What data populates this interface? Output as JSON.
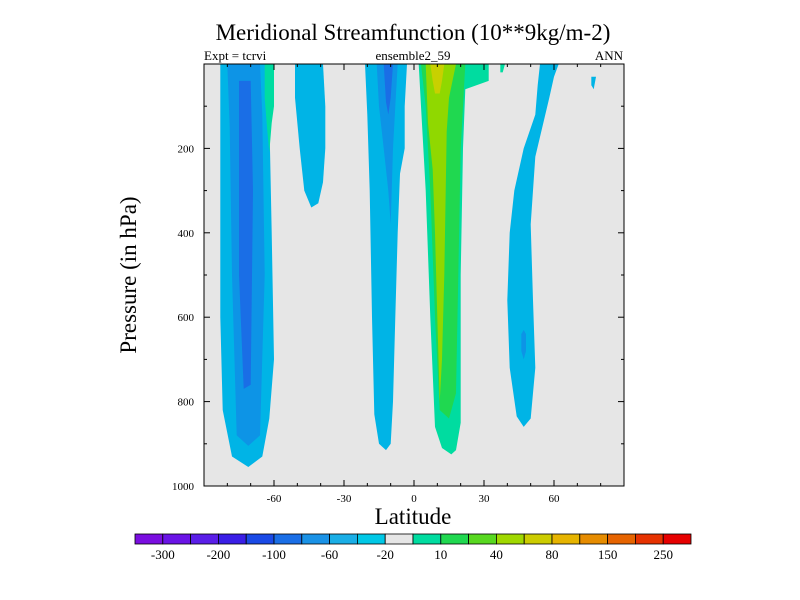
{
  "chart_data": {
    "type": "contour",
    "title": "Meridional Streamfunction (10**9kg/m-2)",
    "left_label": "Expt = tcrvi",
    "center_label": "ensemble2_59",
    "right_label": "ANN",
    "xlabel": "Latitude",
    "ylabel": "Pressure (in hPa)",
    "xlim": [
      -90,
      90
    ],
    "ylim": [
      1000,
      0
    ],
    "x_ticks": [
      -60,
      -30,
      0,
      30,
      60
    ],
    "y_ticks": [
      200,
      400,
      600,
      800,
      1000
    ],
    "background_color": "#e6e6e6",
    "colorbar": {
      "colors": [
        "#7a0ee0",
        "#6a14e6",
        "#5a1ee8",
        "#3a1ee6",
        "#1a4ae6",
        "#1a6ee6",
        "#1a92e6",
        "#1aaee6",
        "#00c8e6",
        "#e6e6e6",
        "#00dca0",
        "#20d850",
        "#58d820",
        "#a0d800",
        "#cccc00",
        "#e6b400",
        "#e68c00",
        "#e66400",
        "#e63200",
        "#e60000"
      ],
      "tick_labels": [
        "-300",
        "-200",
        "-100",
        "-60",
        "-20",
        "10",
        "40",
        "80",
        "150",
        "250"
      ]
    },
    "contours": [
      {
        "name": "sh-cell-outer",
        "value": -20,
        "color": "#00b4e6",
        "points": [
          [
            -83,
            0
          ],
          [
            -62,
            0
          ],
          [
            -62,
            120
          ],
          [
            -61,
            400
          ],
          [
            -60,
            700
          ],
          [
            -62,
            840
          ],
          [
            -65,
            930
          ],
          [
            -71,
            955
          ],
          [
            -78,
            930
          ],
          [
            -82,
            820
          ],
          [
            -83,
            600
          ],
          [
            -83,
            300
          ]
        ]
      },
      {
        "name": "sh-cell-inner",
        "value": -60,
        "color": "#0d94e6",
        "points": [
          [
            -80,
            0
          ],
          [
            -66,
            0
          ],
          [
            -65,
            120
          ],
          [
            -64,
            500
          ],
          [
            -66,
            880
          ],
          [
            -71,
            905
          ],
          [
            -76,
            880
          ],
          [
            -78,
            500
          ],
          [
            -79,
            150
          ]
        ]
      },
      {
        "name": "sh-cell-core",
        "value": -100,
        "color": "#1a6ee6",
        "points": [
          [
            -75,
            40
          ],
          [
            -70,
            40
          ],
          [
            -69,
            300
          ],
          [
            -70,
            760
          ],
          [
            -73,
            770
          ],
          [
            -75,
            500
          ]
        ]
      },
      {
        "name": "sh-mid-cell",
        "value": -20,
        "color": "#00b4e6",
        "points": [
          [
            -51,
            0
          ],
          [
            -39,
            0
          ],
          [
            -38,
            100
          ],
          [
            -38,
            200
          ],
          [
            -39,
            280
          ],
          [
            -41,
            330
          ],
          [
            -44,
            340
          ],
          [
            -47,
            300
          ],
          [
            -49,
            200
          ],
          [
            -51,
            80
          ]
        ]
      },
      {
        "name": "sh-subtropic-cell",
        "value": -20,
        "color": "#00b4e6",
        "points": [
          [
            -21,
            0
          ],
          [
            -3,
            0
          ],
          [
            -4,
            100
          ],
          [
            -4,
            200
          ],
          [
            -6,
            260
          ],
          [
            -7,
            400
          ],
          [
            -8,
            600
          ],
          [
            -9,
            800
          ],
          [
            -10,
            900
          ],
          [
            -12,
            915
          ],
          [
            -15,
            900
          ],
          [
            -17,
            830
          ],
          [
            -18,
            600
          ],
          [
            -19,
            300
          ],
          [
            -20,
            120
          ]
        ]
      },
      {
        "name": "sh-subtropic-inner",
        "value": -60,
        "color": "#0d94e6",
        "points": [
          [
            -16,
            0
          ],
          [
            -7,
            0
          ],
          [
            -8,
            100
          ],
          [
            -9,
            200
          ],
          [
            -10,
            380
          ],
          [
            -11,
            300
          ],
          [
            -13,
            200
          ],
          [
            -15,
            100
          ]
        ]
      },
      {
        "name": "sh-subtropic-core",
        "value": -100,
        "color": "#1a6ee6",
        "points": [
          [
            -13,
            0
          ],
          [
            -9,
            0
          ],
          [
            -10,
            80
          ],
          [
            -11,
            120
          ],
          [
            -12,
            90
          ]
        ]
      },
      {
        "name": "sh-high-lat-pos",
        "value": 10,
        "color": "#00dca0",
        "points": [
          [
            -64,
            0
          ],
          [
            -60,
            0
          ],
          [
            -60,
            100
          ],
          [
            -61,
            140
          ],
          [
            -62,
            210
          ],
          [
            -63,
            150
          ],
          [
            -64,
            80
          ]
        ]
      },
      {
        "name": "nh-hadley-outer",
        "value": 10,
        "color": "#00dca0",
        "points": [
          [
            2,
            0
          ],
          [
            32,
            0
          ],
          [
            32,
            40
          ],
          [
            22,
            60
          ],
          [
            21,
            200
          ],
          [
            20,
            500
          ],
          [
            20,
            850
          ],
          [
            18,
            915
          ],
          [
            16,
            925
          ],
          [
            12,
            910
          ],
          [
            9,
            860
          ],
          [
            7,
            600
          ],
          [
            5,
            300
          ],
          [
            3,
            100
          ]
        ]
      },
      {
        "name": "nh-hadley-mid",
        "value": 40,
        "color": "#20d850",
        "points": [
          [
            3,
            0
          ],
          [
            22,
            0
          ],
          [
            20,
            200
          ],
          [
            19,
            500
          ],
          [
            18,
            780
          ],
          [
            15,
            840
          ],
          [
            11,
            820
          ],
          [
            9,
            600
          ],
          [
            7,
            300
          ],
          [
            5,
            100
          ]
        ]
      },
      {
        "name": "nh-hadley-inner",
        "value": 80,
        "color": "#90d800",
        "points": [
          [
            5,
            0
          ],
          [
            18,
            0
          ],
          [
            15,
            80
          ],
          [
            14,
            160
          ],
          [
            13,
            500
          ],
          [
            12,
            700
          ],
          [
            11,
            800
          ],
          [
            10,
            600
          ],
          [
            9,
            400
          ],
          [
            8,
            250
          ],
          [
            6,
            140
          ]
        ]
      },
      {
        "name": "nh-hadley-core",
        "value": 150,
        "color": "#c8d000",
        "points": [
          [
            7,
            0
          ],
          [
            13,
            0
          ],
          [
            12,
            40
          ],
          [
            11,
            70
          ],
          [
            9,
            70
          ],
          [
            8,
            40
          ]
        ]
      },
      {
        "name": "nh-subtropic-pos",
        "value": 10,
        "color": "#00dca0",
        "points": [
          [
            37,
            0
          ],
          [
            39,
            0
          ],
          [
            38,
            20
          ],
          [
            37,
            20
          ]
        ]
      },
      {
        "name": "nh-mid-cell",
        "value": -20,
        "color": "#00b4e6",
        "points": [
          [
            54,
            0
          ],
          [
            62,
            0
          ],
          [
            60,
            30
          ],
          [
            58,
            80
          ],
          [
            55,
            150
          ],
          [
            52,
            220
          ],
          [
            50,
            380
          ],
          [
            51,
            560
          ],
          [
            52,
            720
          ],
          [
            50,
            840
          ],
          [
            47,
            860
          ],
          [
            44,
            835
          ],
          [
            41,
            720
          ],
          [
            40,
            560
          ],
          [
            41,
            400
          ],
          [
            43,
            300
          ],
          [
            47,
            200
          ],
          [
            52,
            120
          ],
          [
            53,
            50
          ]
        ]
      },
      {
        "name": "nh-mid-core",
        "value": -60,
        "color": "#0d94e6",
        "points": [
          [
            47,
            630
          ],
          [
            48,
            640
          ],
          [
            48,
            680
          ],
          [
            47,
            700
          ],
          [
            46,
            680
          ],
          [
            46,
            640
          ]
        ]
      },
      {
        "name": "nh-polar-small",
        "value": -20,
        "color": "#00b4e6",
        "points": [
          [
            76,
            30
          ],
          [
            78,
            30
          ],
          [
            77,
            60
          ],
          [
            76,
            50
          ]
        ]
      }
    ]
  }
}
